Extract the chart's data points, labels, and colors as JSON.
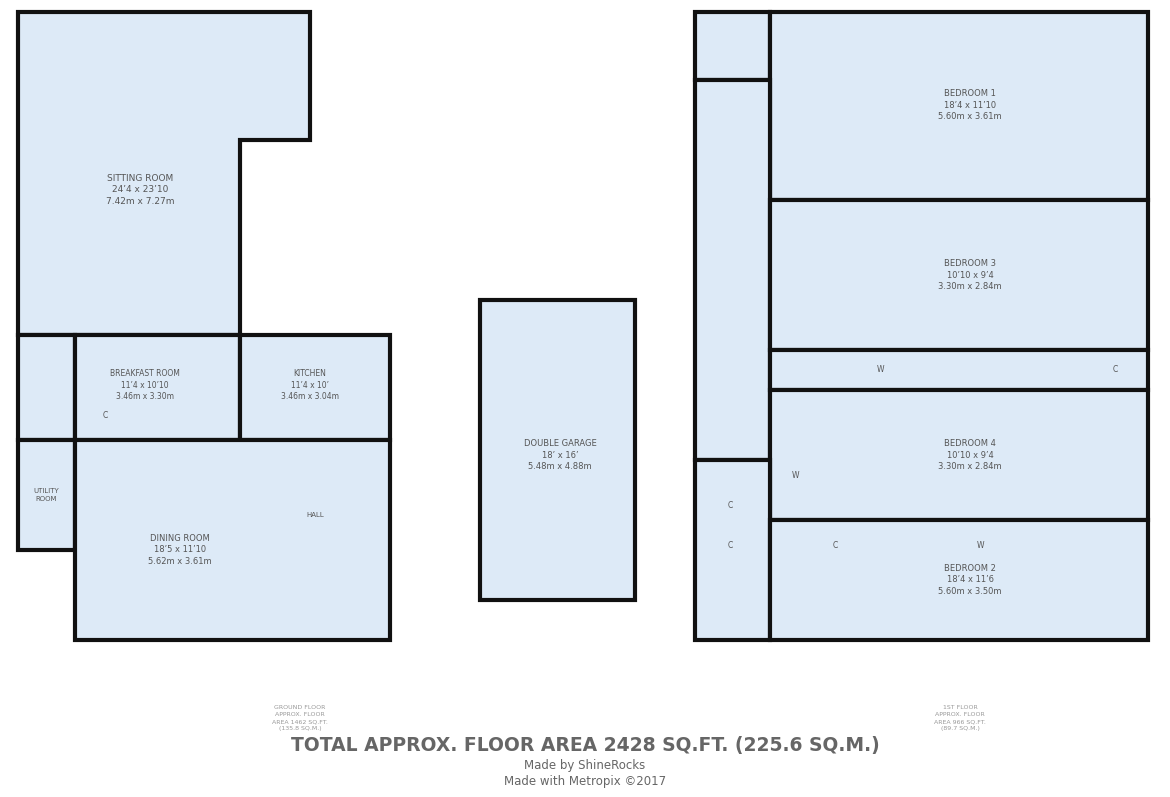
{
  "bg_color": "#ffffff",
  "room_fill": "#ddeaf7",
  "wall_color": "#111111",
  "wall_lw": 3.0,
  "text_color": "#555555",
  "title_color": "#666666",
  "title": "TOTAL APPROX. FLOOR AREA 2428 SQ.FT. (225.6 SQ.M.)",
  "subtitle1": "Made by ShineRocks",
  "subtitle2": "Made with Metropix ©2017",
  "ground_floor_label": "GROUND FLOOR\nAPPROX. FLOOR\nAREA 1462 SQ.FT.\n(135.8 SQ.M.)",
  "first_floor_label": "1ST FLOOR\nAPPROX. FLOOR\nAREA 966 SQ.FT.\n(89.7 SQ.M.)",
  "rooms": {
    "sitting_room": {
      "label": "SITTING ROOM\n24’4 x 23’10\n7.42m x 7.27m"
    },
    "breakfast_room": {
      "label": "BREAKFAST ROOM\n11’4 x 10’10\n3.46m x 3.30m"
    },
    "kitchen": {
      "label": "KITCHEN\n11’4 x 10’\n3.46m x 3.04m"
    },
    "dining_room": {
      "label": "DINING ROOM\n18’5 x 11’10\n5.62m x 3.61m"
    },
    "utility_room": {
      "label": "UTILITY\nROOM"
    },
    "hall": {
      "label": "HALL"
    },
    "double_garage": {
      "label": "DOUBLE GARAGE\n18’ x 16’\n5.48m x 4.88m"
    },
    "bedroom1": {
      "label": "BEDROOM 1\n18’4 x 11’10\n5.60m x 3.61m"
    },
    "bedroom2": {
      "label": "BEDROOM 2\n18’4 x 11’6\n5.60m x 3.50m"
    },
    "bedroom3": {
      "label": "BEDROOM 3\n10’10 x 9’4\n3.30m x 2.84m"
    },
    "bedroom4": {
      "label": "BEDROOM 4\n10’10 x 9’4\n3.30m x 2.84m"
    }
  }
}
